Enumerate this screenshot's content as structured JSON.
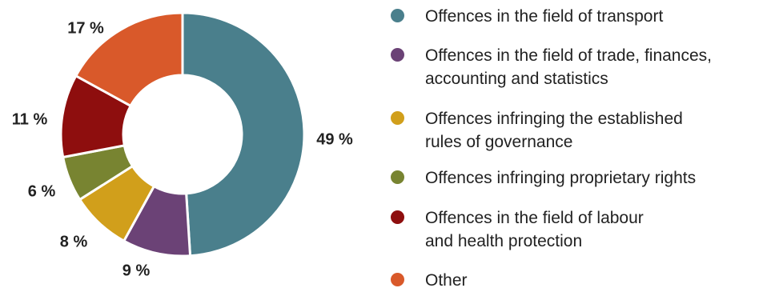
{
  "chart_data": {
    "type": "pie",
    "donut": true,
    "series": [
      {
        "label": "Offences in the field of transport",
        "value": 49,
        "display": "49 %",
        "color": "#4a7f8c"
      },
      {
        "label": "Offences in the field of trade, finances,\naccounting and statistics",
        "value": 9,
        "display": "9 %",
        "color": "#6b4276"
      },
      {
        "label": "Offences infringing the established\nrules of governance",
        "value": 8,
        "display": "8 %",
        "color": "#d19f1b"
      },
      {
        "label": "Offences infringing proprietary rights",
        "value": 6,
        "display": "6 %",
        "color": "#788431"
      },
      {
        "label": "Offences in the field of labour\nand health protection",
        "value": 11,
        "display": "11 %",
        "color": "#8e0e0e"
      },
      {
        "label": "Other",
        "value": 17,
        "display": "17 %",
        "color": "#d9592a"
      }
    ],
    "legend_position": "right"
  }
}
